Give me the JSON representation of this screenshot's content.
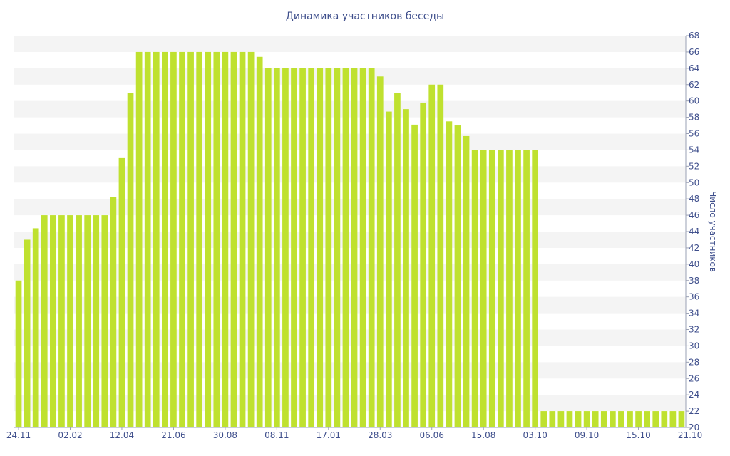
{
  "chart_data": {
    "type": "bar",
    "title": "Динамика участников беседы",
    "xlabel": "",
    "ylabel": "Число участников",
    "ylim": [
      20,
      68
    ],
    "ytick_step": 2,
    "grid": "alternating horizontal bands",
    "colors": {
      "bar": "#bfe12f",
      "band": "#f4f4f4",
      "text": "#3f4f8c"
    },
    "x_tick_labels": [
      {
        "index": 0,
        "label": "24.11"
      },
      {
        "index": 6,
        "label": "02.02"
      },
      {
        "index": 12,
        "label": "12.04"
      },
      {
        "index": 18,
        "label": "21.06"
      },
      {
        "index": 24,
        "label": "30.08"
      },
      {
        "index": 30,
        "label": "08.11"
      },
      {
        "index": 36,
        "label": "17.01"
      },
      {
        "index": 42,
        "label": "28.03"
      },
      {
        "index": 48,
        "label": "06.06"
      },
      {
        "index": 54,
        "label": "15.08"
      },
      {
        "index": 60,
        "label": "03.10"
      },
      {
        "index": 66,
        "label": "09.10"
      },
      {
        "index": 72,
        "label": "15.10"
      },
      {
        "index": 78,
        "label": "21.10"
      }
    ],
    "values": [
      38,
      43,
      44.4,
      46,
      46,
      46,
      46,
      46,
      46,
      46,
      46,
      48.2,
      53,
      61,
      66,
      66,
      66,
      66,
      66,
      66,
      66,
      66,
      66,
      66,
      66,
      66,
      66,
      66,
      65.4,
      64,
      64,
      64,
      64,
      64,
      64,
      64,
      64,
      64,
      64,
      64,
      64,
      64,
      63,
      58.7,
      61,
      59,
      57.1,
      59.8,
      62,
      62,
      57.5,
      57,
      55.7,
      54,
      54,
      54,
      54,
      54,
      54,
      54,
      54,
      22,
      22,
      22,
      22,
      22,
      22,
      22,
      22,
      22,
      22,
      22,
      22,
      22,
      22,
      22,
      22,
      22
    ]
  }
}
